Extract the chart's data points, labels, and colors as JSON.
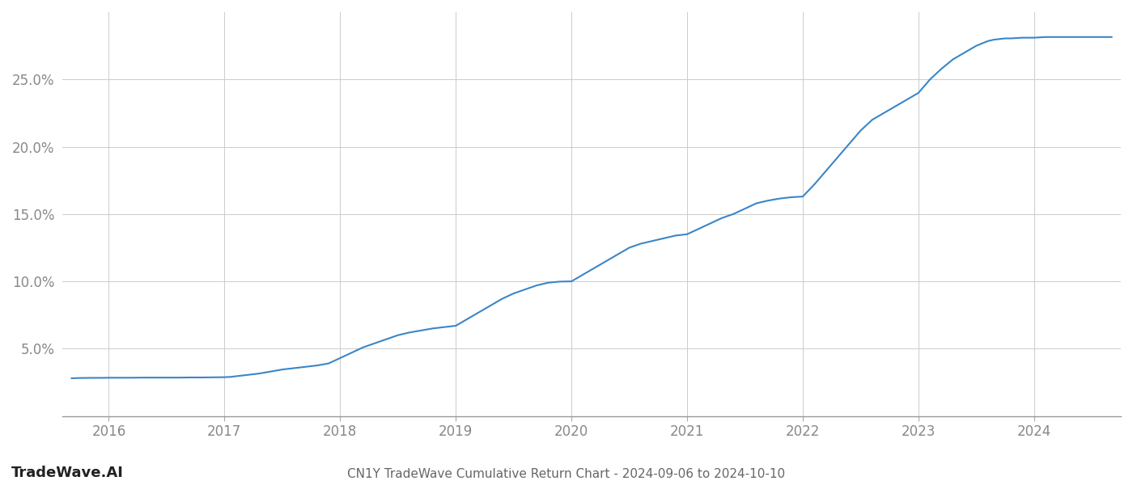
{
  "title": "CN1Y TradeWave Cumulative Return Chart - 2024-09-06 to 2024-10-10",
  "watermark": "TradeWave.AI",
  "line_color": "#3a86c8",
  "line_width": 1.5,
  "background_color": "#ffffff",
  "grid_color": "#cccccc",
  "tick_color": "#888888",
  "years": [
    2016,
    2017,
    2018,
    2019,
    2020,
    2021,
    2022,
    2023,
    2024
  ],
  "x_values": [
    2015.68,
    2015.75,
    2015.85,
    2015.95,
    2016.0,
    2016.1,
    2016.2,
    2016.3,
    2016.4,
    2016.5,
    2016.6,
    2016.7,
    2016.8,
    2016.9,
    2017.0,
    2017.05,
    2017.1,
    2017.2,
    2017.3,
    2017.4,
    2017.5,
    2017.6,
    2017.7,
    2017.8,
    2017.9,
    2018.0,
    2018.1,
    2018.2,
    2018.3,
    2018.4,
    2018.5,
    2018.6,
    2018.7,
    2018.8,
    2018.9,
    2019.0,
    2019.1,
    2019.2,
    2019.3,
    2019.4,
    2019.5,
    2019.6,
    2019.7,
    2019.8,
    2019.9,
    2020.0,
    2020.1,
    2020.2,
    2020.3,
    2020.4,
    2020.5,
    2020.6,
    2020.7,
    2020.8,
    2020.9,
    2021.0,
    2021.1,
    2021.2,
    2021.3,
    2021.4,
    2021.5,
    2021.6,
    2021.7,
    2021.8,
    2021.9,
    2022.0,
    2022.1,
    2022.2,
    2022.3,
    2022.4,
    2022.5,
    2022.6,
    2022.7,
    2022.8,
    2022.9,
    2023.0,
    2023.1,
    2023.2,
    2023.3,
    2023.4,
    2023.5,
    2023.6,
    2023.65,
    2023.7,
    2023.75,
    2023.8,
    2023.9,
    2024.0,
    2024.1,
    2024.2,
    2024.3,
    2024.4,
    2024.5,
    2024.6,
    2024.67
  ],
  "y_values": [
    2.8,
    2.82,
    2.83,
    2.83,
    2.84,
    2.84,
    2.84,
    2.85,
    2.85,
    2.85,
    2.85,
    2.86,
    2.86,
    2.87,
    2.88,
    2.9,
    2.95,
    3.05,
    3.15,
    3.3,
    3.45,
    3.55,
    3.65,
    3.75,
    3.9,
    4.3,
    4.7,
    5.1,
    5.4,
    5.7,
    6.0,
    6.2,
    6.35,
    6.5,
    6.6,
    6.7,
    7.2,
    7.7,
    8.2,
    8.7,
    9.1,
    9.4,
    9.7,
    9.9,
    9.98,
    10.0,
    10.5,
    11.0,
    11.5,
    12.0,
    12.5,
    12.8,
    13.0,
    13.2,
    13.4,
    13.5,
    13.9,
    14.3,
    14.7,
    15.0,
    15.4,
    15.8,
    16.0,
    16.15,
    16.25,
    16.3,
    17.2,
    18.2,
    19.2,
    20.2,
    21.2,
    22.0,
    22.5,
    23.0,
    23.5,
    24.0,
    25.0,
    25.8,
    26.5,
    27.0,
    27.5,
    27.85,
    27.95,
    28.0,
    28.05,
    28.05,
    28.1,
    28.1,
    28.15,
    28.15,
    28.15,
    28.15,
    28.15,
    28.15,
    28.15
  ],
  "ylim": [
    0,
    30
  ],
  "yticks": [
    5.0,
    10.0,
    15.0,
    20.0,
    25.0
  ],
  "xlim": [
    2015.6,
    2024.75
  ],
  "title_fontsize": 11,
  "tick_fontsize": 12,
  "watermark_fontsize": 13
}
